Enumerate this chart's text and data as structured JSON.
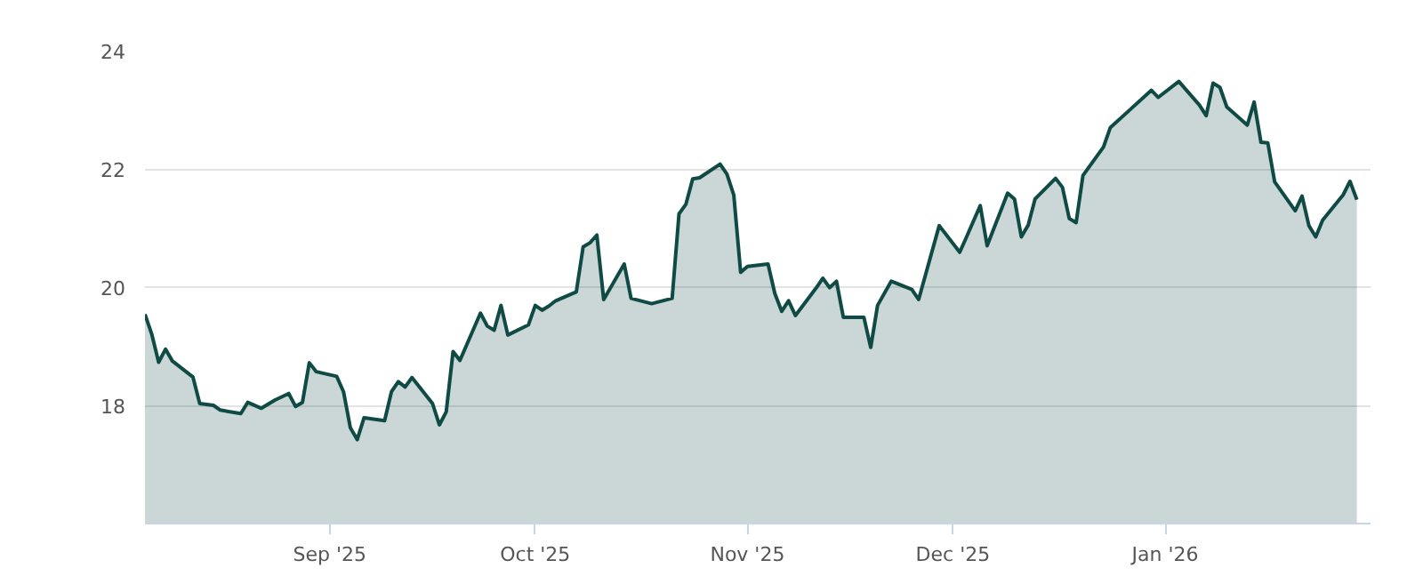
{
  "chart_data": {
    "type": "area",
    "color": "#0f4a44",
    "grid": "y",
    "xlim": [
      "2025-08-05",
      "2026-01-31"
    ],
    "ylim": [
      16,
      24
    ],
    "xticks": [
      {
        "value": "2025-09-01",
        "label": "Sep '25"
      },
      {
        "value": "2025-10-01",
        "label": "Oct '25"
      },
      {
        "value": "2025-11-01",
        "label": "Nov '25"
      },
      {
        "value": "2025-12-01",
        "label": "Dec '25"
      },
      {
        "value": "2026-01-01",
        "label": "Jan '26"
      }
    ],
    "yticks": [
      18,
      20,
      22,
      24
    ],
    "x": [
      "2025-08-05",
      "2025-08-06",
      "2025-08-07",
      "2025-08-08",
      "2025-08-09",
      "2025-08-12",
      "2025-08-13",
      "2025-08-15",
      "2025-08-16",
      "2025-08-19",
      "2025-08-20",
      "2025-08-22",
      "2025-08-24",
      "2025-08-26",
      "2025-08-27",
      "2025-08-28",
      "2025-08-29",
      "2025-08-30",
      "2025-09-02",
      "2025-09-03",
      "2025-09-04",
      "2025-09-05",
      "2025-09-06",
      "2025-09-09",
      "2025-09-10",
      "2025-09-11",
      "2025-09-12",
      "2025-09-13",
      "2025-09-16",
      "2025-09-17",
      "2025-09-18",
      "2025-09-19",
      "2025-09-20",
      "2025-09-23",
      "2025-09-24",
      "2025-09-25",
      "2025-09-26",
      "2025-09-27",
      "2025-09-30",
      "2025-10-01",
      "2025-10-02",
      "2025-10-03",
      "2025-10-04",
      "2025-10-07",
      "2025-10-08",
      "2025-10-09",
      "2025-10-10",
      "2025-10-11",
      "2025-10-14",
      "2025-10-15",
      "2025-10-16",
      "2025-10-18",
      "2025-10-21",
      "2025-10-22",
      "2025-10-23",
      "2025-10-24",
      "2025-10-25",
      "2025-10-28",
      "2025-10-29",
      "2025-10-30",
      "2025-10-31",
      "2025-11-01",
      "2025-11-04",
      "2025-11-05",
      "2025-11-06",
      "2025-11-07",
      "2025-11-08",
      "2025-11-11",
      "2025-11-12",
      "2025-11-13",
      "2025-11-14",
      "2025-11-15",
      "2025-11-18",
      "2025-11-19",
      "2025-11-20",
      "2025-11-22",
      "2025-11-25",
      "2025-11-26",
      "2025-11-29",
      "2025-12-02",
      "2025-12-03",
      "2025-12-05",
      "2025-12-06",
      "2025-12-09",
      "2025-12-10",
      "2025-12-11",
      "2025-12-12",
      "2025-12-13",
      "2025-12-16",
      "2025-12-17",
      "2025-12-18",
      "2025-12-19",
      "2025-12-20",
      "2025-12-23",
      "2025-12-24",
      "2025-12-30",
      "2025-12-31",
      "2026-01-03",
      "2026-01-06",
      "2026-01-07",
      "2026-01-08",
      "2026-01-09",
      "2026-01-10",
      "2026-01-13",
      "2026-01-14",
      "2026-01-15",
      "2026-01-16",
      "2026-01-17",
      "2026-01-20",
      "2026-01-21",
      "2026-01-22",
      "2026-01-23",
      "2026-01-24",
      "2026-01-27",
      "2026-01-28",
      "2026-01-29"
    ],
    "values": [
      19.54,
      19.2,
      18.73,
      18.95,
      18.75,
      18.48,
      18.03,
      18.0,
      17.92,
      17.86,
      18.05,
      17.95,
      18.09,
      18.2,
      17.98,
      18.05,
      18.72,
      18.57,
      18.49,
      18.23,
      17.62,
      17.42,
      17.79,
      17.74,
      18.23,
      18.4,
      18.31,
      18.47,
      18.03,
      17.67,
      17.89,
      18.91,
      18.76,
      19.56,
      19.34,
      19.27,
      19.69,
      19.19,
      19.36,
      19.69,
      19.61,
      19.68,
      19.77,
      19.92,
      20.68,
      20.75,
      20.88,
      19.79,
      20.39,
      19.81,
      19.78,
      19.72,
      19.81,
      21.24,
      21.4,
      21.83,
      21.85,
      22.08,
      21.91,
      21.56,
      20.25,
      20.35,
      20.39,
      19.89,
      19.59,
      19.77,
      19.52,
      19.98,
      20.15,
      19.99,
      20.1,
      19.49,
      19.49,
      18.98,
      19.69,
      20.1,
      19.96,
      19.79,
      21.04,
      20.59,
      20.85,
      21.38,
      20.7,
      21.59,
      21.49,
      20.85,
      21.05,
      21.49,
      21.84,
      21.69,
      21.16,
      21.09,
      21.89,
      22.37,
      22.7,
      23.33,
      23.21,
      23.48,
      23.08,
      22.9,
      23.45,
      23.38,
      23.05,
      22.74,
      23.13,
      22.45,
      22.44,
      21.78,
      21.29,
      21.54,
      21.04,
      20.85,
      21.13,
      21.56,
      21.79,
      21.48
    ]
  }
}
